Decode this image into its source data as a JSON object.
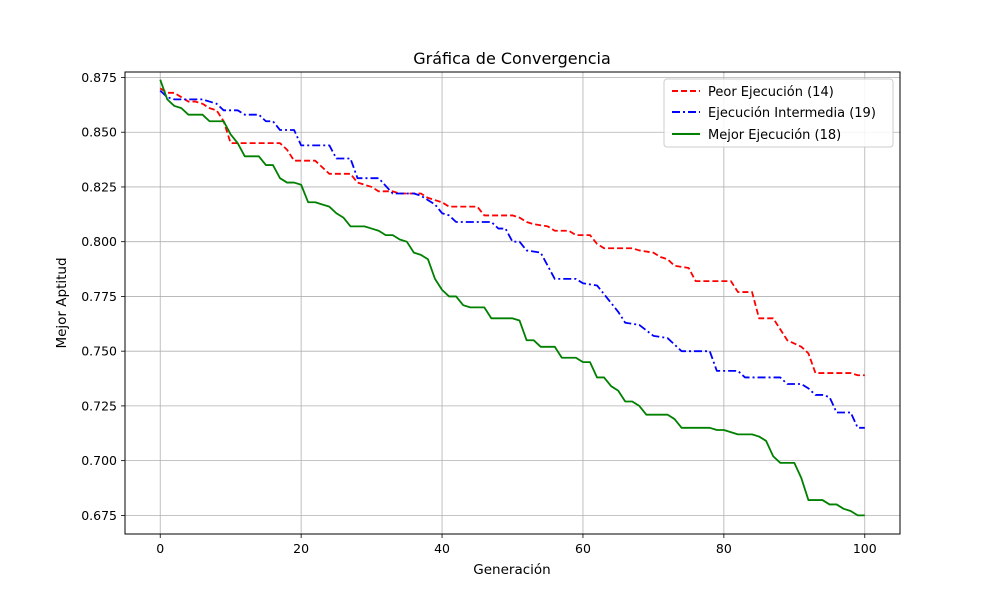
{
  "chart_data": {
    "type": "line",
    "title": "Gráfica de Convergencia",
    "xlabel": "Generación",
    "ylabel": "Mejor Aptitud",
    "xlim": [
      -5,
      105
    ],
    "ylim": [
      0.6665,
      0.8775
    ],
    "xticks": [
      0,
      20,
      40,
      60,
      80,
      100
    ],
    "yticks": [
      0.675,
      0.7,
      0.725,
      0.75,
      0.775,
      0.8,
      0.825,
      0.85,
      0.875
    ],
    "grid": true,
    "legend_position": "top-right",
    "series": [
      {
        "name": "Peor Ejecución (14)",
        "color": "#ff0000",
        "dash": "dashed",
        "points": [
          [
            0,
            0.87
          ],
          [
            1,
            0.868
          ],
          [
            2,
            0.868
          ],
          [
            3,
            0.866
          ],
          [
            4,
            0.864
          ],
          [
            5,
            0.864
          ],
          [
            6,
            0.863
          ],
          [
            7,
            0.861
          ],
          [
            8,
            0.86
          ],
          [
            9,
            0.855
          ],
          [
            10,
            0.845
          ],
          [
            12,
            0.845
          ],
          [
            17,
            0.845
          ],
          [
            18,
            0.842
          ],
          [
            19,
            0.837
          ],
          [
            22,
            0.837
          ],
          [
            23,
            0.834
          ],
          [
            24,
            0.831
          ],
          [
            27,
            0.831
          ],
          [
            28,
            0.827
          ],
          [
            30,
            0.825
          ],
          [
            31,
            0.823
          ],
          [
            33,
            0.823
          ],
          [
            34,
            0.822
          ],
          [
            37,
            0.822
          ],
          [
            38,
            0.82
          ],
          [
            40,
            0.818
          ],
          [
            41,
            0.816
          ],
          [
            45,
            0.816
          ],
          [
            46,
            0.812
          ],
          [
            48,
            0.812
          ],
          [
            50,
            0.812
          ],
          [
            51,
            0.811
          ],
          [
            52,
            0.809
          ],
          [
            53,
            0.808
          ],
          [
            55,
            0.807
          ],
          [
            56,
            0.805
          ],
          [
            58,
            0.805
          ],
          [
            59,
            0.803
          ],
          [
            61,
            0.803
          ],
          [
            62,
            0.799
          ],
          [
            63,
            0.797
          ],
          [
            67,
            0.797
          ],
          [
            68,
            0.796
          ],
          [
            70,
            0.795
          ],
          [
            71,
            0.793
          ],
          [
            72,
            0.792
          ],
          [
            73,
            0.789
          ],
          [
            75,
            0.788
          ],
          [
            76,
            0.782
          ],
          [
            79,
            0.782
          ],
          [
            81,
            0.782
          ],
          [
            82,
            0.777
          ],
          [
            84,
            0.777
          ],
          [
            85,
            0.765
          ],
          [
            87,
            0.765
          ],
          [
            88,
            0.76
          ],
          [
            89,
            0.755
          ],
          [
            91,
            0.752
          ],
          [
            92,
            0.749
          ],
          [
            93,
            0.74
          ],
          [
            97,
            0.74
          ],
          [
            98,
            0.74
          ],
          [
            99,
            0.739
          ],
          [
            100,
            0.739
          ]
        ]
      },
      {
        "name": "Ejecución Intermedia (19)",
        "color": "#0000ff",
        "dash": "dashdot",
        "points": [
          [
            0,
            0.869
          ],
          [
            1,
            0.866
          ],
          [
            2,
            0.865
          ],
          [
            6,
            0.865
          ],
          [
            7,
            0.864
          ],
          [
            8,
            0.863
          ],
          [
            9,
            0.86
          ],
          [
            11,
            0.86
          ],
          [
            12,
            0.858
          ],
          [
            14,
            0.858
          ],
          [
            15,
            0.855
          ],
          [
            16,
            0.855
          ],
          [
            17,
            0.851
          ],
          [
            19,
            0.851
          ],
          [
            20,
            0.844
          ],
          [
            24,
            0.844
          ],
          [
            25,
            0.838
          ],
          [
            27,
            0.838
          ],
          [
            28,
            0.829
          ],
          [
            31,
            0.829
          ],
          [
            33,
            0.822
          ],
          [
            36,
            0.822
          ],
          [
            37,
            0.821
          ],
          [
            38,
            0.819
          ],
          [
            39,
            0.817
          ],
          [
            40,
            0.813
          ],
          [
            41,
            0.812
          ],
          [
            42,
            0.809
          ],
          [
            47,
            0.809
          ],
          [
            48,
            0.806
          ],
          [
            49,
            0.806
          ],
          [
            50,
            0.8
          ],
          [
            51,
            0.8
          ],
          [
            52,
            0.796
          ],
          [
            54,
            0.795
          ],
          [
            55,
            0.789
          ],
          [
            56,
            0.783
          ],
          [
            59,
            0.783
          ],
          [
            60,
            0.781
          ],
          [
            62,
            0.78
          ],
          [
            63,
            0.776
          ],
          [
            64,
            0.772
          ],
          [
            65,
            0.768
          ],
          [
            66,
            0.763
          ],
          [
            68,
            0.762
          ],
          [
            70,
            0.757
          ],
          [
            72,
            0.756
          ],
          [
            73,
            0.753
          ],
          [
            74,
            0.75
          ],
          [
            78,
            0.75
          ],
          [
            79,
            0.741
          ],
          [
            82,
            0.741
          ],
          [
            83,
            0.738
          ],
          [
            88,
            0.738
          ],
          [
            89,
            0.735
          ],
          [
            91,
            0.735
          ],
          [
            92,
            0.733
          ],
          [
            93,
            0.73
          ],
          [
            94,
            0.73
          ],
          [
            95,
            0.729
          ],
          [
            96,
            0.722
          ],
          [
            98,
            0.722
          ],
          [
            99,
            0.715
          ],
          [
            100,
            0.715
          ]
        ]
      },
      {
        "name": "Mejor Ejecución (18)",
        "color": "#008000",
        "dash": "solid",
        "points": [
          [
            0,
            0.874
          ],
          [
            1,
            0.865
          ],
          [
            2,
            0.862
          ],
          [
            3,
            0.861
          ],
          [
            4,
            0.858
          ],
          [
            6,
            0.858
          ],
          [
            7,
            0.855
          ],
          [
            9,
            0.855
          ],
          [
            10,
            0.849
          ],
          [
            11,
            0.845
          ],
          [
            12,
            0.839
          ],
          [
            14,
            0.839
          ],
          [
            15,
            0.835
          ],
          [
            16,
            0.835
          ],
          [
            17,
            0.829
          ],
          [
            18,
            0.827
          ],
          [
            19,
            0.827
          ],
          [
            20,
            0.826
          ],
          [
            21,
            0.818
          ],
          [
            22,
            0.818
          ],
          [
            23,
            0.817
          ],
          [
            24,
            0.816
          ],
          [
            25,
            0.813
          ],
          [
            26,
            0.811
          ],
          [
            27,
            0.807
          ],
          [
            29,
            0.807
          ],
          [
            30,
            0.806
          ],
          [
            31,
            0.805
          ],
          [
            32,
            0.803
          ],
          [
            33,
            0.803
          ],
          [
            34,
            0.801
          ],
          [
            35,
            0.8
          ],
          [
            36,
            0.795
          ],
          [
            37,
            0.794
          ],
          [
            38,
            0.792
          ],
          [
            39,
            0.783
          ],
          [
            40,
            0.778
          ],
          [
            41,
            0.775
          ],
          [
            42,
            0.775
          ],
          [
            43,
            0.771
          ],
          [
            44,
            0.77
          ],
          [
            46,
            0.77
          ],
          [
            47,
            0.765
          ],
          [
            49,
            0.765
          ],
          [
            50,
            0.765
          ],
          [
            51,
            0.764
          ],
          [
            52,
            0.755
          ],
          [
            53,
            0.755
          ],
          [
            54,
            0.752
          ],
          [
            56,
            0.752
          ],
          [
            57,
            0.747
          ],
          [
            59,
            0.747
          ],
          [
            60,
            0.745
          ],
          [
            61,
            0.745
          ],
          [
            62,
            0.738
          ],
          [
            63,
            0.738
          ],
          [
            64,
            0.734
          ],
          [
            65,
            0.732
          ],
          [
            66,
            0.727
          ],
          [
            67,
            0.727
          ],
          [
            68,
            0.725
          ],
          [
            69,
            0.721
          ],
          [
            72,
            0.721
          ],
          [
            73,
            0.719
          ],
          [
            74,
            0.715
          ],
          [
            76,
            0.715
          ],
          [
            78,
            0.715
          ],
          [
            79,
            0.714
          ],
          [
            80,
            0.714
          ],
          [
            82,
            0.712
          ],
          [
            84,
            0.712
          ],
          [
            85,
            0.711
          ],
          [
            86,
            0.709
          ],
          [
            87,
            0.702
          ],
          [
            88,
            0.699
          ],
          [
            89,
            0.699
          ],
          [
            90,
            0.699
          ],
          [
            91,
            0.692
          ],
          [
            92,
            0.682
          ],
          [
            94,
            0.682
          ],
          [
            95,
            0.68
          ],
          [
            96,
            0.68
          ],
          [
            97,
            0.678
          ],
          [
            98,
            0.677
          ],
          [
            99,
            0.675
          ],
          [
            100,
            0.675
          ]
        ]
      }
    ]
  }
}
